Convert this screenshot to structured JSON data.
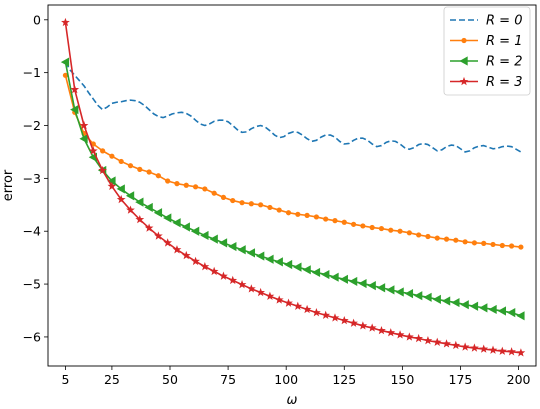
{
  "chart_data": {
    "type": "line",
    "xlabel": "ω",
    "ylabel": "error",
    "xlim": [
      -2.5,
      207.5
    ],
    "ylim": [
      -6.55,
      0.28
    ],
    "xticks": [
      5,
      25,
      50,
      75,
      100,
      125,
      150,
      175,
      200
    ],
    "xtick_labels": [
      "5",
      "25",
      "50",
      "75",
      "100",
      "125",
      "150",
      "175",
      "200"
    ],
    "yticks": [
      0,
      -1,
      -2,
      -3,
      -4,
      -5,
      -6
    ],
    "ytick_labels": [
      "0",
      "−1",
      "−2",
      "−3",
      "−4",
      "−5",
      "−6"
    ],
    "legend_position": "top-right",
    "grid": false,
    "x": [
      5,
      9,
      13,
      17,
      21,
      25,
      29,
      33,
      37,
      41,
      45,
      49,
      53,
      57,
      61,
      65,
      69,
      73,
      77,
      81,
      85,
      89,
      93,
      97,
      101,
      105,
      109,
      113,
      117,
      121,
      125,
      129,
      133,
      137,
      141,
      145,
      149,
      153,
      157,
      161,
      165,
      169,
      173,
      177,
      181,
      185,
      189,
      193,
      197,
      201
    ],
    "series": [
      {
        "name": "R = 0",
        "color": "#1f77b4",
        "style": "dashed",
        "marker": "none",
        "x": [
          5,
          7,
          9,
          11,
          13,
          15,
          17,
          19,
          21,
          23,
          25,
          27,
          29,
          31,
          33,
          35,
          37,
          39,
          41,
          43,
          45,
          47,
          49,
          51,
          53,
          55,
          57,
          59,
          61,
          63,
          65,
          67,
          69,
          71,
          73,
          75,
          77,
          79,
          81,
          83,
          85,
          87,
          89,
          91,
          93,
          95,
          97,
          99,
          101,
          103,
          105,
          107,
          109,
          111,
          113,
          115,
          117,
          119,
          121,
          123,
          125,
          127,
          129,
          131,
          133,
          135,
          137,
          139,
          141,
          143,
          145,
          147,
          149,
          151,
          153,
          155,
          157,
          159,
          161,
          163,
          165,
          167,
          169,
          171,
          173,
          175,
          177,
          179,
          181,
          183,
          185,
          187,
          189,
          191,
          193,
          195,
          197,
          199,
          201
        ],
        "values": [
          -0.8,
          -0.95,
          -1.05,
          -1.15,
          -1.25,
          -1.38,
          -1.5,
          -1.62,
          -1.7,
          -1.65,
          -1.58,
          -1.56,
          -1.55,
          -1.53,
          -1.52,
          -1.53,
          -1.56,
          -1.62,
          -1.7,
          -1.78,
          -1.83,
          -1.85,
          -1.82,
          -1.78,
          -1.76,
          -1.75,
          -1.77,
          -1.82,
          -1.9,
          -1.97,
          -2.0,
          -1.97,
          -1.92,
          -1.9,
          -1.9,
          -1.93,
          -2.0,
          -2.08,
          -2.13,
          -2.12,
          -2.06,
          -2.02,
          -2.0,
          -2.03,
          -2.1,
          -2.18,
          -2.23,
          -2.21,
          -2.15,
          -2.12,
          -2.13,
          -2.18,
          -2.25,
          -2.3,
          -2.28,
          -2.22,
          -2.18,
          -2.18,
          -2.22,
          -2.3,
          -2.35,
          -2.34,
          -2.28,
          -2.24,
          -2.24,
          -2.28,
          -2.35,
          -2.4,
          -2.38,
          -2.32,
          -2.29,
          -2.3,
          -2.35,
          -2.42,
          -2.45,
          -2.42,
          -2.36,
          -2.34,
          -2.36,
          -2.42,
          -2.48,
          -2.46,
          -2.4,
          -2.37,
          -2.38,
          -2.44,
          -2.5,
          -2.48,
          -2.42,
          -2.39,
          -2.38,
          -2.41,
          -2.44,
          -2.43,
          -2.4,
          -2.39,
          -2.4,
          -2.45,
          -2.5
        ]
      },
      {
        "name": "R = 1",
        "color": "#ff7f0e",
        "style": "solid",
        "marker": "circle",
        "values": [
          -1.05,
          -1.75,
          -2.15,
          -2.35,
          -2.48,
          -2.58,
          -2.68,
          -2.76,
          -2.83,
          -2.88,
          -2.95,
          -3.05,
          -3.1,
          -3.13,
          -3.16,
          -3.2,
          -3.28,
          -3.36,
          -3.42,
          -3.46,
          -3.48,
          -3.5,
          -3.55,
          -3.6,
          -3.65,
          -3.68,
          -3.7,
          -3.73,
          -3.77,
          -3.8,
          -3.83,
          -3.87,
          -3.9,
          -3.93,
          -3.95,
          -3.98,
          -4.0,
          -4.03,
          -4.07,
          -4.1,
          -4.13,
          -4.15,
          -4.17,
          -4.2,
          -4.22,
          -4.23,
          -4.25,
          -4.27,
          -4.28,
          -4.3
        ]
      },
      {
        "name": "R = 2",
        "color": "#2ca02c",
        "style": "solid",
        "marker": "triangle-left",
        "values": [
          -0.8,
          -1.7,
          -2.25,
          -2.6,
          -2.85,
          -3.05,
          -3.2,
          -3.33,
          -3.45,
          -3.55,
          -3.65,
          -3.75,
          -3.84,
          -3.92,
          -4.0,
          -4.08,
          -4.15,
          -4.22,
          -4.29,
          -4.35,
          -4.41,
          -4.47,
          -4.53,
          -4.58,
          -4.63,
          -4.68,
          -4.73,
          -4.78,
          -4.82,
          -4.87,
          -4.91,
          -4.95,
          -4.99,
          -5.03,
          -5.07,
          -5.11,
          -5.15,
          -5.18,
          -5.22,
          -5.25,
          -5.29,
          -5.32,
          -5.35,
          -5.39,
          -5.42,
          -5.45,
          -5.48,
          -5.51,
          -5.54,
          -5.6
        ]
      },
      {
        "name": "R = 3",
        "color": "#d62728",
        "style": "solid",
        "marker": "star",
        "values": [
          -0.05,
          -1.32,
          -2.0,
          -2.48,
          -2.85,
          -3.15,
          -3.4,
          -3.6,
          -3.78,
          -3.94,
          -4.09,
          -4.22,
          -4.35,
          -4.46,
          -4.57,
          -4.67,
          -4.76,
          -4.85,
          -4.93,
          -5.01,
          -5.09,
          -5.16,
          -5.23,
          -5.3,
          -5.36,
          -5.42,
          -5.48,
          -5.54,
          -5.59,
          -5.64,
          -5.69,
          -5.74,
          -5.79,
          -5.83,
          -5.88,
          -5.92,
          -5.96,
          -6.0,
          -6.03,
          -6.07,
          -6.1,
          -6.13,
          -6.16,
          -6.19,
          -6.21,
          -6.23,
          -6.25,
          -6.27,
          -6.28,
          -6.3
        ]
      }
    ]
  }
}
